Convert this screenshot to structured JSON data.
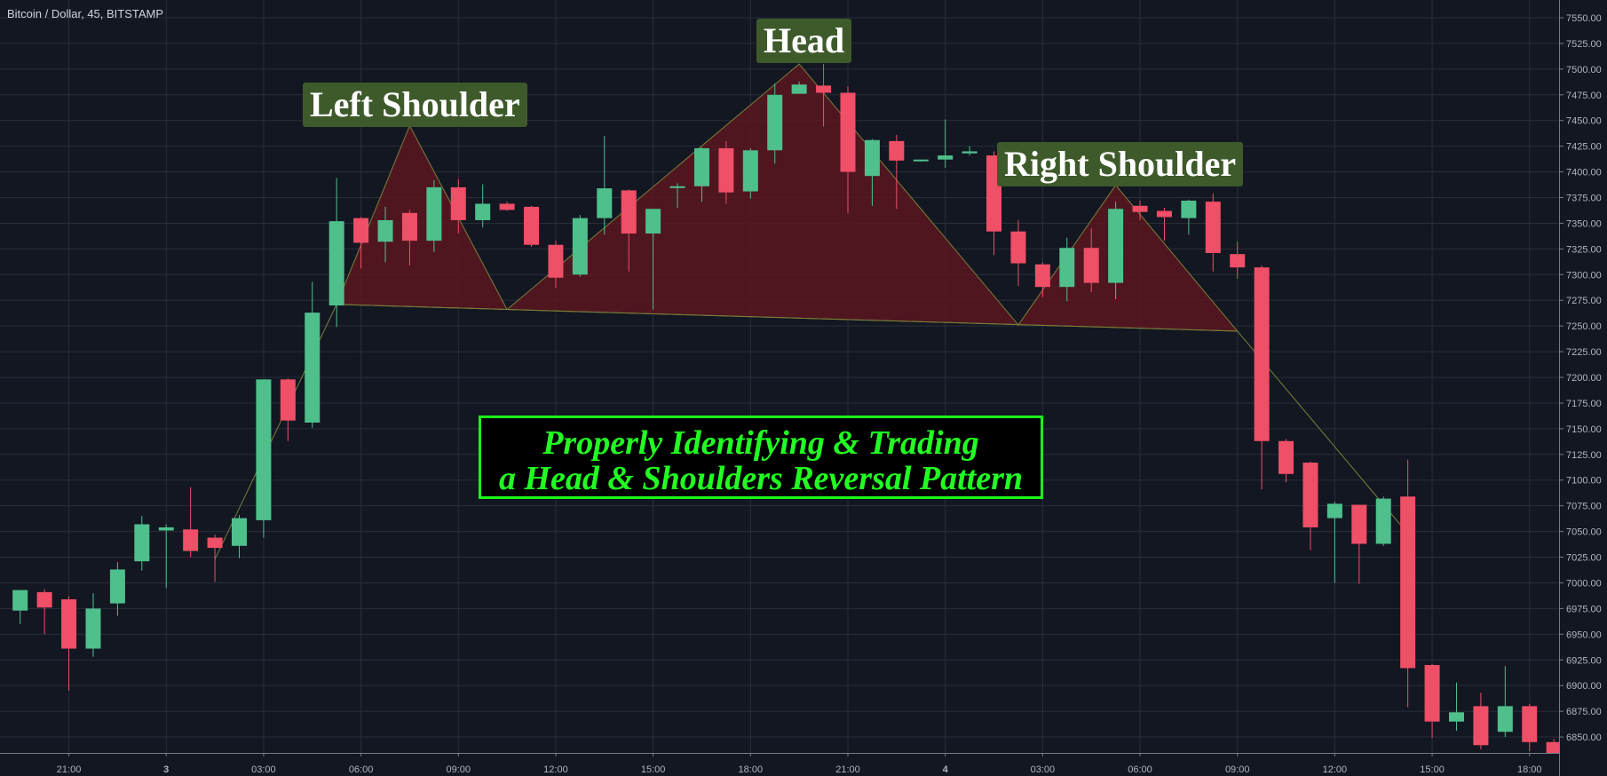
{
  "header": {
    "symbol_title": "Bitcoin / Dollar, 45, BITSTAMP"
  },
  "annotations": {
    "left_shoulder": "Left Shoulder",
    "head": "Head",
    "right_shoulder": "Right Shoulder",
    "title_line1": "Properly Identifying & Trading",
    "title_line2": "a Head & Shoulders Reversal Pattern"
  },
  "colors": {
    "background": "#131722",
    "grid": "#2a2e39",
    "up_candle": "#4fbf8c",
    "down_candle": "#ef4f67",
    "pattern_fill": "#5a1620",
    "pattern_line": "#7a7f3a",
    "label_bg": "#3e5a2b",
    "title_text": "#22ff22"
  },
  "chart_data": {
    "type": "candlestick",
    "title": "Bitcoin / Dollar, 45, BITSTAMP",
    "ylim": [
      6825,
      7560
    ],
    "y_ticks": [
      "7550.00",
      "7525.00",
      "7500.00",
      "7475.00",
      "7450.00",
      "7425.00",
      "7400.00",
      "7375.00",
      "7350.00",
      "7325.00",
      "7300.00",
      "7275.00",
      "7250.00",
      "7225.00",
      "7200.00",
      "7175.00",
      "7150.00",
      "7125.00",
      "7100.00",
      "7075.00",
      "7050.00",
      "7025.00",
      "7000.00",
      "6975.00",
      "6950.00",
      "6925.00",
      "6900.00",
      "6875.00",
      "6850.00"
    ],
    "x_ticks": [
      {
        "label": "21:00",
        "bar": 2.5
      },
      {
        "label": "3",
        "bar": 6.5
      },
      {
        "label": "03:00",
        "bar": 10.5
      },
      {
        "label": "06:00",
        "bar": 14.5
      },
      {
        "label": "09:00",
        "bar": 18.5
      },
      {
        "label": "12:00",
        "bar": 22.5
      },
      {
        "label": "15:00",
        "bar": 26.5
      },
      {
        "label": "18:00",
        "bar": 30.5
      },
      {
        "label": "21:00",
        "bar": 34.5
      },
      {
        "label": "4",
        "bar": 38.5
      },
      {
        "label": "03:00",
        "bar": 42.5
      },
      {
        "label": "06:00",
        "bar": 46.5
      },
      {
        "label": "09:00",
        "bar": 50.5
      },
      {
        "label": "12:00",
        "bar": 54.5
      },
      {
        "label": "15:00",
        "bar": 58.5
      },
      {
        "label": "18:00",
        "bar": 62.5
      }
    ],
    "candles": [
      {
        "o": 6973,
        "h": 6993,
        "l": 6960,
        "c": 6993
      },
      {
        "o": 6991,
        "h": 6994,
        "l": 6950,
        "c": 6976
      },
      {
        "o": 6984,
        "h": 6987,
        "l": 6895,
        "c": 6936
      },
      {
        "o": 6936,
        "h": 6990,
        "l": 6928,
        "c": 6975
      },
      {
        "o": 6980,
        "h": 7020,
        "l": 6968,
        "c": 7013
      },
      {
        "o": 7021,
        "h": 7065,
        "l": 7012,
        "c": 7057
      },
      {
        "o": 7051,
        "h": 7057,
        "l": 6995,
        "c": 7054
      },
      {
        "o": 7052,
        "h": 7093,
        "l": 7025,
        "c": 7031
      },
      {
        "o": 7044,
        "h": 7047,
        "l": 7001,
        "c": 7034
      },
      {
        "o": 7036,
        "h": 7066,
        "l": 7024,
        "c": 7063
      },
      {
        "o": 7061,
        "h": 7198,
        "l": 7044,
        "c": 7198
      },
      {
        "o": 7198,
        "h": 7199,
        "l": 7138,
        "c": 7158
      },
      {
        "o": 7156,
        "h": 7293,
        "l": 7151,
        "c": 7263
      },
      {
        "o": 7270,
        "h": 7394,
        "l": 7249,
        "c": 7352
      },
      {
        "o": 7355,
        "h": 7356,
        "l": 7306,
        "c": 7331
      },
      {
        "o": 7332,
        "h": 7366,
        "l": 7312,
        "c": 7353
      },
      {
        "o": 7360,
        "h": 7363,
        "l": 7309,
        "c": 7333
      },
      {
        "o": 7333,
        "h": 7392,
        "l": 7322,
        "c": 7385
      },
      {
        "o": 7385,
        "h": 7393,
        "l": 7340,
        "c": 7353
      },
      {
        "o": 7353,
        "h": 7388,
        "l": 7346,
        "c": 7369
      },
      {
        "o": 7369,
        "h": 7371,
        "l": 7362,
        "c": 7363
      },
      {
        "o": 7366,
        "h": 7367,
        "l": 7327,
        "c": 7329
      },
      {
        "o": 7329,
        "h": 7333,
        "l": 7287,
        "c": 7297
      },
      {
        "o": 7300,
        "h": 7358,
        "l": 7298,
        "c": 7355
      },
      {
        "o": 7355,
        "h": 7435,
        "l": 7339,
        "c": 7384
      },
      {
        "o": 7382,
        "h": 7383,
        "l": 7303,
        "c": 7340
      },
      {
        "o": 7340,
        "h": 7364,
        "l": 7266,
        "c": 7364
      },
      {
        "o": 7386,
        "h": 7389,
        "l": 7365,
        "c": 7386
      },
      {
        "o": 7386,
        "h": 7424,
        "l": 7371,
        "c": 7423
      },
      {
        "o": 7423,
        "h": 7430,
        "l": 7369,
        "c": 7380
      },
      {
        "o": 7381,
        "h": 7423,
        "l": 7374,
        "c": 7421
      },
      {
        "o": 7421,
        "h": 7486,
        "l": 7408,
        "c": 7475
      },
      {
        "o": 7476,
        "h": 7488,
        "l": 7480,
        "c": 7485
      },
      {
        "o": 7484,
        "h": 7505,
        "l": 7444,
        "c": 7477
      },
      {
        "o": 7477,
        "h": 7483,
        "l": 7360,
        "c": 7400
      },
      {
        "o": 7396,
        "h": 7432,
        "l": 7367,
        "c": 7431
      },
      {
        "o": 7430,
        "h": 7436,
        "l": 7364,
        "c": 7411
      },
      {
        "o": 7411,
        "h": 7412,
        "l": 7410,
        "c": 7412
      },
      {
        "o": 7412,
        "h": 7451,
        "l": 7404,
        "c": 7416
      },
      {
        "o": 7418,
        "h": 7425,
        "l": 7416,
        "c": 7420
      },
      {
        "o": 7416,
        "h": 7420,
        "l": 7319,
        "c": 7342
      },
      {
        "o": 7342,
        "h": 7353,
        "l": 7289,
        "c": 7311
      },
      {
        "o": 7310,
        "h": 7312,
        "l": 7278,
        "c": 7288
      },
      {
        "o": 7288,
        "h": 7336,
        "l": 7274,
        "c": 7326
      },
      {
        "o": 7326,
        "h": 7345,
        "l": 7283,
        "c": 7292
      },
      {
        "o": 7292,
        "h": 7371,
        "l": 7276,
        "c": 7364
      },
      {
        "o": 7367,
        "h": 7372,
        "l": 7353,
        "c": 7361
      },
      {
        "o": 7362,
        "h": 7365,
        "l": 7333,
        "c": 7356
      },
      {
        "o": 7355,
        "h": 7373,
        "l": 7339,
        "c": 7372
      },
      {
        "o": 7371,
        "h": 7379,
        "l": 7303,
        "c": 7321
      },
      {
        "o": 7320,
        "h": 7332,
        "l": 7296,
        "c": 7307
      },
      {
        "o": 7307,
        "h": 7309,
        "l": 7091,
        "c": 7138
      },
      {
        "o": 7138,
        "h": 7140,
        "l": 7098,
        "c": 7106
      },
      {
        "o": 7117,
        "h": 7118,
        "l": 7032,
        "c": 7054
      },
      {
        "o": 7063,
        "h": 7079,
        "l": 7000,
        "c": 7077
      },
      {
        "o": 7076,
        "h": 7076,
        "l": 6999,
        "c": 7038
      },
      {
        "o": 7038,
        "h": 7084,
        "l": 7036,
        "c": 7082
      },
      {
        "o": 7084,
        "h": 7120,
        "l": 6879,
        "c": 6917
      },
      {
        "o": 6920,
        "h": 6921,
        "l": 6849,
        "c": 6865
      },
      {
        "o": 6865,
        "h": 6903,
        "l": 6856,
        "c": 6874
      },
      {
        "o": 6880,
        "h": 6893,
        "l": 6838,
        "c": 6842
      },
      {
        "o": 6855,
        "h": 6919,
        "l": 6850,
        "c": 6880
      },
      {
        "o": 6880,
        "h": 6882,
        "l": 6836,
        "c": 6845
      },
      {
        "o": 6845,
        "h": 6848,
        "l": 6825,
        "c": 6831
      }
    ],
    "pattern": {
      "neckline_start": {
        "bar": 13.5,
        "price": 7271
      },
      "left_shoulder_peak": {
        "bar": 16.5,
        "price": 7445
      },
      "neckline_left": {
        "bar": 20.5,
        "price": 7266
      },
      "head_peak": {
        "bar": 32.5,
        "price": 7505
      },
      "neckline_right": {
        "bar": 41.5,
        "price": 7251
      },
      "right_shoulder_peak": {
        "bar": 45.5,
        "price": 7387
      },
      "neckline_end": {
        "bar": 50.5,
        "price": 7245
      },
      "trend_in_start": {
        "bar": 8.5,
        "price": 7023
      },
      "breakdown_target": {
        "bar": 57.5,
        "price": 7048
      }
    }
  }
}
